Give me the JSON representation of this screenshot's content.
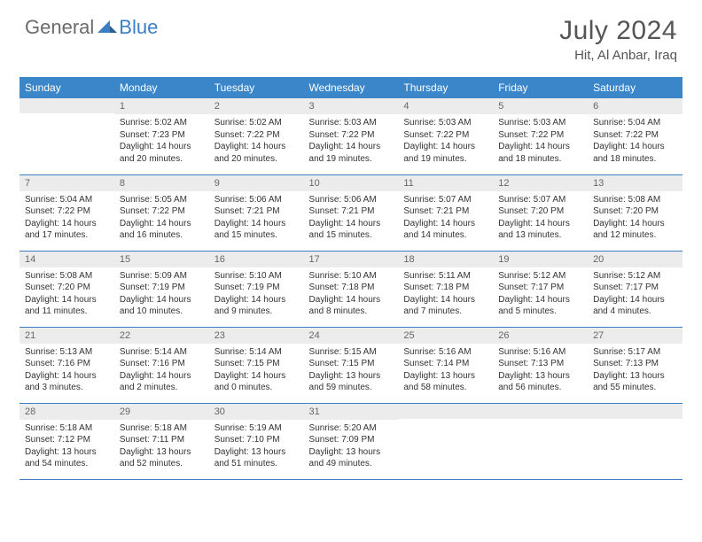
{
  "brand": {
    "part1": "General",
    "part2": "Blue"
  },
  "title": "July 2024",
  "location": "Hit, Al Anbar, Iraq",
  "colors": {
    "header_bg": "#3a86c8",
    "border": "#3a7fc4",
    "daynum_bg": "#ececec",
    "text": "#333333",
    "logo_gray": "#6b6b6b",
    "logo_blue": "#3a7fc4",
    "page_bg": "#ffffff"
  },
  "weekdays": [
    "Sunday",
    "Monday",
    "Tuesday",
    "Wednesday",
    "Thursday",
    "Friday",
    "Saturday"
  ],
  "weeks": [
    [
      {
        "n": "",
        "sr": "",
        "ss": "",
        "dl": ""
      },
      {
        "n": "1",
        "sr": "Sunrise: 5:02 AM",
        "ss": "Sunset: 7:23 PM",
        "dl": "Daylight: 14 hours and 20 minutes."
      },
      {
        "n": "2",
        "sr": "Sunrise: 5:02 AM",
        "ss": "Sunset: 7:22 PM",
        "dl": "Daylight: 14 hours and 20 minutes."
      },
      {
        "n": "3",
        "sr": "Sunrise: 5:03 AM",
        "ss": "Sunset: 7:22 PM",
        "dl": "Daylight: 14 hours and 19 minutes."
      },
      {
        "n": "4",
        "sr": "Sunrise: 5:03 AM",
        "ss": "Sunset: 7:22 PM",
        "dl": "Daylight: 14 hours and 19 minutes."
      },
      {
        "n": "5",
        "sr": "Sunrise: 5:03 AM",
        "ss": "Sunset: 7:22 PM",
        "dl": "Daylight: 14 hours and 18 minutes."
      },
      {
        "n": "6",
        "sr": "Sunrise: 5:04 AM",
        "ss": "Sunset: 7:22 PM",
        "dl": "Daylight: 14 hours and 18 minutes."
      }
    ],
    [
      {
        "n": "7",
        "sr": "Sunrise: 5:04 AM",
        "ss": "Sunset: 7:22 PM",
        "dl": "Daylight: 14 hours and 17 minutes."
      },
      {
        "n": "8",
        "sr": "Sunrise: 5:05 AM",
        "ss": "Sunset: 7:22 PM",
        "dl": "Daylight: 14 hours and 16 minutes."
      },
      {
        "n": "9",
        "sr": "Sunrise: 5:06 AM",
        "ss": "Sunset: 7:21 PM",
        "dl": "Daylight: 14 hours and 15 minutes."
      },
      {
        "n": "10",
        "sr": "Sunrise: 5:06 AM",
        "ss": "Sunset: 7:21 PM",
        "dl": "Daylight: 14 hours and 15 minutes."
      },
      {
        "n": "11",
        "sr": "Sunrise: 5:07 AM",
        "ss": "Sunset: 7:21 PM",
        "dl": "Daylight: 14 hours and 14 minutes."
      },
      {
        "n": "12",
        "sr": "Sunrise: 5:07 AM",
        "ss": "Sunset: 7:20 PM",
        "dl": "Daylight: 14 hours and 13 minutes."
      },
      {
        "n": "13",
        "sr": "Sunrise: 5:08 AM",
        "ss": "Sunset: 7:20 PM",
        "dl": "Daylight: 14 hours and 12 minutes."
      }
    ],
    [
      {
        "n": "14",
        "sr": "Sunrise: 5:08 AM",
        "ss": "Sunset: 7:20 PM",
        "dl": "Daylight: 14 hours and 11 minutes."
      },
      {
        "n": "15",
        "sr": "Sunrise: 5:09 AM",
        "ss": "Sunset: 7:19 PM",
        "dl": "Daylight: 14 hours and 10 minutes."
      },
      {
        "n": "16",
        "sr": "Sunrise: 5:10 AM",
        "ss": "Sunset: 7:19 PM",
        "dl": "Daylight: 14 hours and 9 minutes."
      },
      {
        "n": "17",
        "sr": "Sunrise: 5:10 AM",
        "ss": "Sunset: 7:18 PM",
        "dl": "Daylight: 14 hours and 8 minutes."
      },
      {
        "n": "18",
        "sr": "Sunrise: 5:11 AM",
        "ss": "Sunset: 7:18 PM",
        "dl": "Daylight: 14 hours and 7 minutes."
      },
      {
        "n": "19",
        "sr": "Sunrise: 5:12 AM",
        "ss": "Sunset: 7:17 PM",
        "dl": "Daylight: 14 hours and 5 minutes."
      },
      {
        "n": "20",
        "sr": "Sunrise: 5:12 AM",
        "ss": "Sunset: 7:17 PM",
        "dl": "Daylight: 14 hours and 4 minutes."
      }
    ],
    [
      {
        "n": "21",
        "sr": "Sunrise: 5:13 AM",
        "ss": "Sunset: 7:16 PM",
        "dl": "Daylight: 14 hours and 3 minutes."
      },
      {
        "n": "22",
        "sr": "Sunrise: 5:14 AM",
        "ss": "Sunset: 7:16 PM",
        "dl": "Daylight: 14 hours and 2 minutes."
      },
      {
        "n": "23",
        "sr": "Sunrise: 5:14 AM",
        "ss": "Sunset: 7:15 PM",
        "dl": "Daylight: 14 hours and 0 minutes."
      },
      {
        "n": "24",
        "sr": "Sunrise: 5:15 AM",
        "ss": "Sunset: 7:15 PM",
        "dl": "Daylight: 13 hours and 59 minutes."
      },
      {
        "n": "25",
        "sr": "Sunrise: 5:16 AM",
        "ss": "Sunset: 7:14 PM",
        "dl": "Daylight: 13 hours and 58 minutes."
      },
      {
        "n": "26",
        "sr": "Sunrise: 5:16 AM",
        "ss": "Sunset: 7:13 PM",
        "dl": "Daylight: 13 hours and 56 minutes."
      },
      {
        "n": "27",
        "sr": "Sunrise: 5:17 AM",
        "ss": "Sunset: 7:13 PM",
        "dl": "Daylight: 13 hours and 55 minutes."
      }
    ],
    [
      {
        "n": "28",
        "sr": "Sunrise: 5:18 AM",
        "ss": "Sunset: 7:12 PM",
        "dl": "Daylight: 13 hours and 54 minutes."
      },
      {
        "n": "29",
        "sr": "Sunrise: 5:18 AM",
        "ss": "Sunset: 7:11 PM",
        "dl": "Daylight: 13 hours and 52 minutes."
      },
      {
        "n": "30",
        "sr": "Sunrise: 5:19 AM",
        "ss": "Sunset: 7:10 PM",
        "dl": "Daylight: 13 hours and 51 minutes."
      },
      {
        "n": "31",
        "sr": "Sunrise: 5:20 AM",
        "ss": "Sunset: 7:09 PM",
        "dl": "Daylight: 13 hours and 49 minutes."
      },
      {
        "n": "",
        "sr": "",
        "ss": "",
        "dl": ""
      },
      {
        "n": "",
        "sr": "",
        "ss": "",
        "dl": ""
      },
      {
        "n": "",
        "sr": "",
        "ss": "",
        "dl": ""
      }
    ]
  ]
}
